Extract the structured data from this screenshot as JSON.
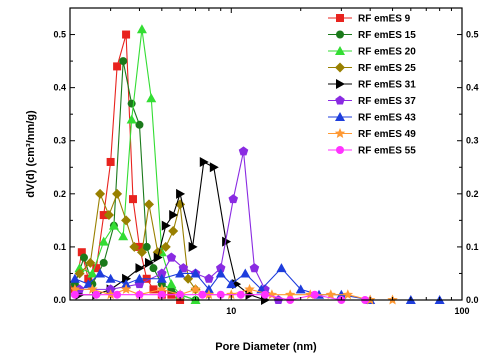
{
  "chart_data": {
    "type": "line",
    "xlabel": "Pore Diameter (nm)",
    "ylabel": "dV(d) (cm³/nm/g)",
    "xscale": "log",
    "xlim": [
      2,
      100
    ],
    "ylim": [
      0,
      0.55
    ],
    "x_tick_labels": [
      {
        "x": 10,
        "label": "10"
      },
      {
        "x": 100,
        "label": "100"
      }
    ],
    "y_ticks": [
      0.0,
      0.1,
      0.2,
      0.3,
      0.4,
      0.5
    ],
    "y_tick_labels": [
      "0.0",
      "0.1",
      "0.2",
      "0.3",
      "0.4",
      "0.5"
    ],
    "legend_position": "top-right",
    "grid": false,
    "series": [
      {
        "name": "RF emES 9",
        "color": "#e8231e",
        "marker": "square",
        "x": [
          2.1,
          2.25,
          2.4,
          2.6,
          2.8,
          3.0,
          3.2,
          3.5,
          3.75,
          4.0,
          4.3,
          4.6,
          5.0,
          5.5,
          6.0
        ],
        "y": [
          0.02,
          0.09,
          0.04,
          0.06,
          0.16,
          0.26,
          0.44,
          0.5,
          0.19,
          0.1,
          0.04,
          0.02,
          0.01,
          0.01,
          0.0
        ]
      },
      {
        "name": "RF emES 15",
        "color": "#1b7a1b",
        "marker": "circle",
        "x": [
          2.1,
          2.3,
          2.5,
          2.8,
          3.1,
          3.4,
          3.7,
          4.0,
          4.3,
          4.6,
          5.0,
          5.5,
          6.0,
          7.0
        ],
        "y": [
          0.03,
          0.08,
          0.03,
          0.07,
          0.14,
          0.45,
          0.37,
          0.33,
          0.1,
          0.06,
          0.03,
          0.02,
          0.01,
          0.0
        ]
      },
      {
        "name": "RF emES 20",
        "color": "#33dd33",
        "marker": "triangle-up",
        "x": [
          2.2,
          2.5,
          2.8,
          3.1,
          3.4,
          3.7,
          4.1,
          4.5,
          5.0,
          5.5,
          6.0,
          7.0
        ],
        "y": [
          0.06,
          0.05,
          0.11,
          0.14,
          0.12,
          0.34,
          0.51,
          0.38,
          0.09,
          0.03,
          0.01,
          0.0
        ]
      },
      {
        "name": "RF emES 25",
        "color": "#998000",
        "marker": "diamond",
        "x": [
          2.2,
          2.45,
          2.7,
          2.95,
          3.2,
          3.5,
          3.8,
          4.1,
          4.4,
          4.8,
          5.2,
          5.6,
          6.0,
          6.5,
          7.0
        ],
        "y": [
          0.05,
          0.07,
          0.2,
          0.16,
          0.2,
          0.15,
          0.1,
          0.09,
          0.18,
          0.09,
          0.1,
          0.13,
          0.18,
          0.04,
          0.02
        ]
      },
      {
        "name": "RF emES 31",
        "color": "#000000",
        "marker": "triangle-right",
        "x": [
          2.2,
          2.6,
          3.0,
          3.5,
          4.0,
          4.4,
          4.8,
          5.2,
          5.6,
          6.0,
          6.8,
          7.6,
          8.4,
          9.5,
          10.5,
          12.0,
          14.0
        ],
        "y": [
          0.01,
          0.01,
          0.02,
          0.04,
          0.06,
          0.07,
          0.08,
          0.14,
          0.16,
          0.2,
          0.1,
          0.26,
          0.25,
          0.11,
          0.03,
          0.01,
          0.0
        ]
      },
      {
        "name": "RF emES 37",
        "color": "#8a2be2",
        "marker": "pentagon",
        "x": [
          2.2,
          3.0,
          4.0,
          5.0,
          5.5,
          6.2,
          7.0,
          8.0,
          9.0,
          10.2,
          11.3,
          12.6,
          14.0,
          16.0
        ],
        "y": [
          0.02,
          0.02,
          0.03,
          0.05,
          0.08,
          0.06,
          0.05,
          0.04,
          0.06,
          0.19,
          0.28,
          0.06,
          0.02,
          0.0
        ]
      },
      {
        "name": "RF emES 43",
        "color": "#1e3ddc",
        "marker": "triangle-up",
        "x": [
          2.1,
          2.4,
          2.7,
          3.0,
          3.5,
          4.0,
          5.0,
          6.0,
          7.0,
          8.0,
          9.0,
          10.0,
          11.5,
          13.5,
          16.5,
          20.0,
          24.0,
          30.0,
          40.0,
          60.0,
          80.0
        ],
        "y": [
          0.04,
          0.03,
          0.05,
          0.04,
          0.03,
          0.04,
          0.04,
          0.05,
          0.05,
          0.02,
          0.05,
          0.03,
          0.05,
          0.02,
          0.06,
          0.02,
          0.01,
          0.01,
          0.0,
          0.0,
          0.0
        ]
      },
      {
        "name": "RF emES 49",
        "color": "#ff9933",
        "marker": "star",
        "x": [
          2.1,
          2.5,
          3.0,
          3.5,
          4.0,
          5.0,
          6.0,
          7.0,
          8.0,
          10.0,
          12.0,
          15.0,
          18.0,
          22.0,
          27.0,
          32.0,
          40.0,
          50.0
        ],
        "y": [
          0.02,
          0.02,
          0.01,
          0.02,
          0.01,
          0.02,
          0.01,
          0.02,
          0.01,
          0.01,
          0.02,
          0.01,
          0.01,
          0.01,
          0.01,
          0.01,
          0.0,
          0.0
        ]
      },
      {
        "name": "RF emES 55",
        "color": "#ff33ff",
        "marker": "circle",
        "x": [
          2.1,
          2.6,
          3.2,
          4.0,
          5.0,
          6.0,
          7.5,
          9.0,
          11.0,
          14.0,
          18.0,
          23.0,
          30.0,
          38.0
        ],
        "y": [
          0.01,
          0.01,
          0.01,
          0.01,
          0.01,
          0.01,
          0.01,
          0.01,
          0.01,
          0.01,
          0.0,
          0.01,
          0.0,
          0.0
        ]
      }
    ]
  }
}
